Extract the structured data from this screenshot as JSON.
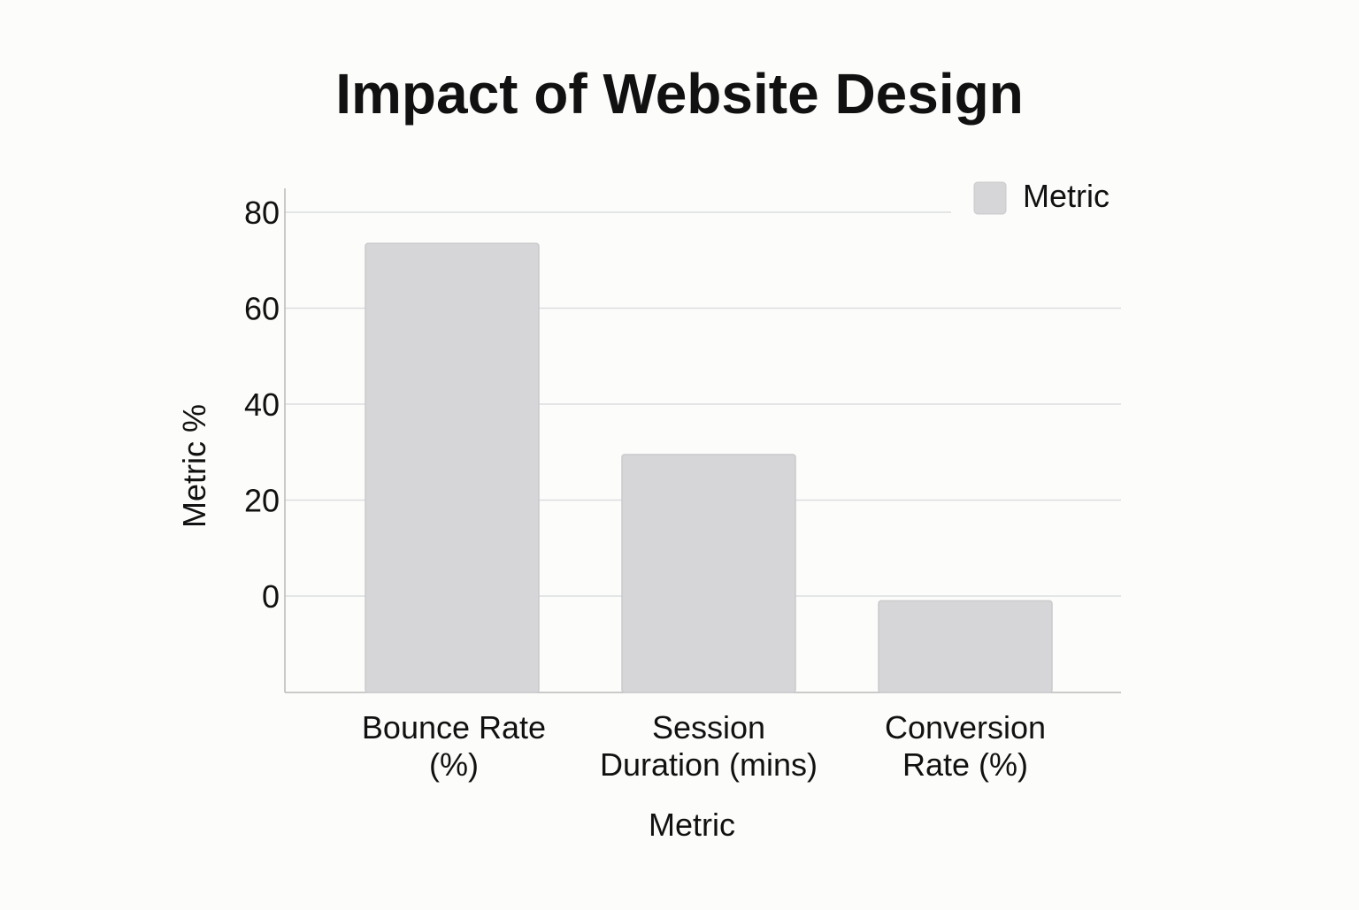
{
  "chart_data": {
    "type": "bar",
    "title": "Impact of Website Design",
    "xlabel": "Metric",
    "ylabel": "Metric %",
    "categories": [
      [
        "Bounce Rate",
        "(%)"
      ],
      [
        "Session",
        "Duration (mins)"
      ],
      [
        "Conversion",
        "Rate (%)"
      ]
    ],
    "series": [
      {
        "name": "Metric",
        "values": [
          73.5,
          29.5,
          -1
        ]
      }
    ],
    "yticks": [
      0,
      20,
      40,
      60,
      80
    ],
    "ylim": [
      -20,
      85
    ],
    "grid": true,
    "legend_position": "top-right",
    "colors": {
      "bar": "#d6d6d8",
      "bar_stroke": "#cacacc",
      "grid": "#dcdde0",
      "axis": "#b9b9bb",
      "text": "#111111",
      "background": "#fcfcfa"
    }
  }
}
